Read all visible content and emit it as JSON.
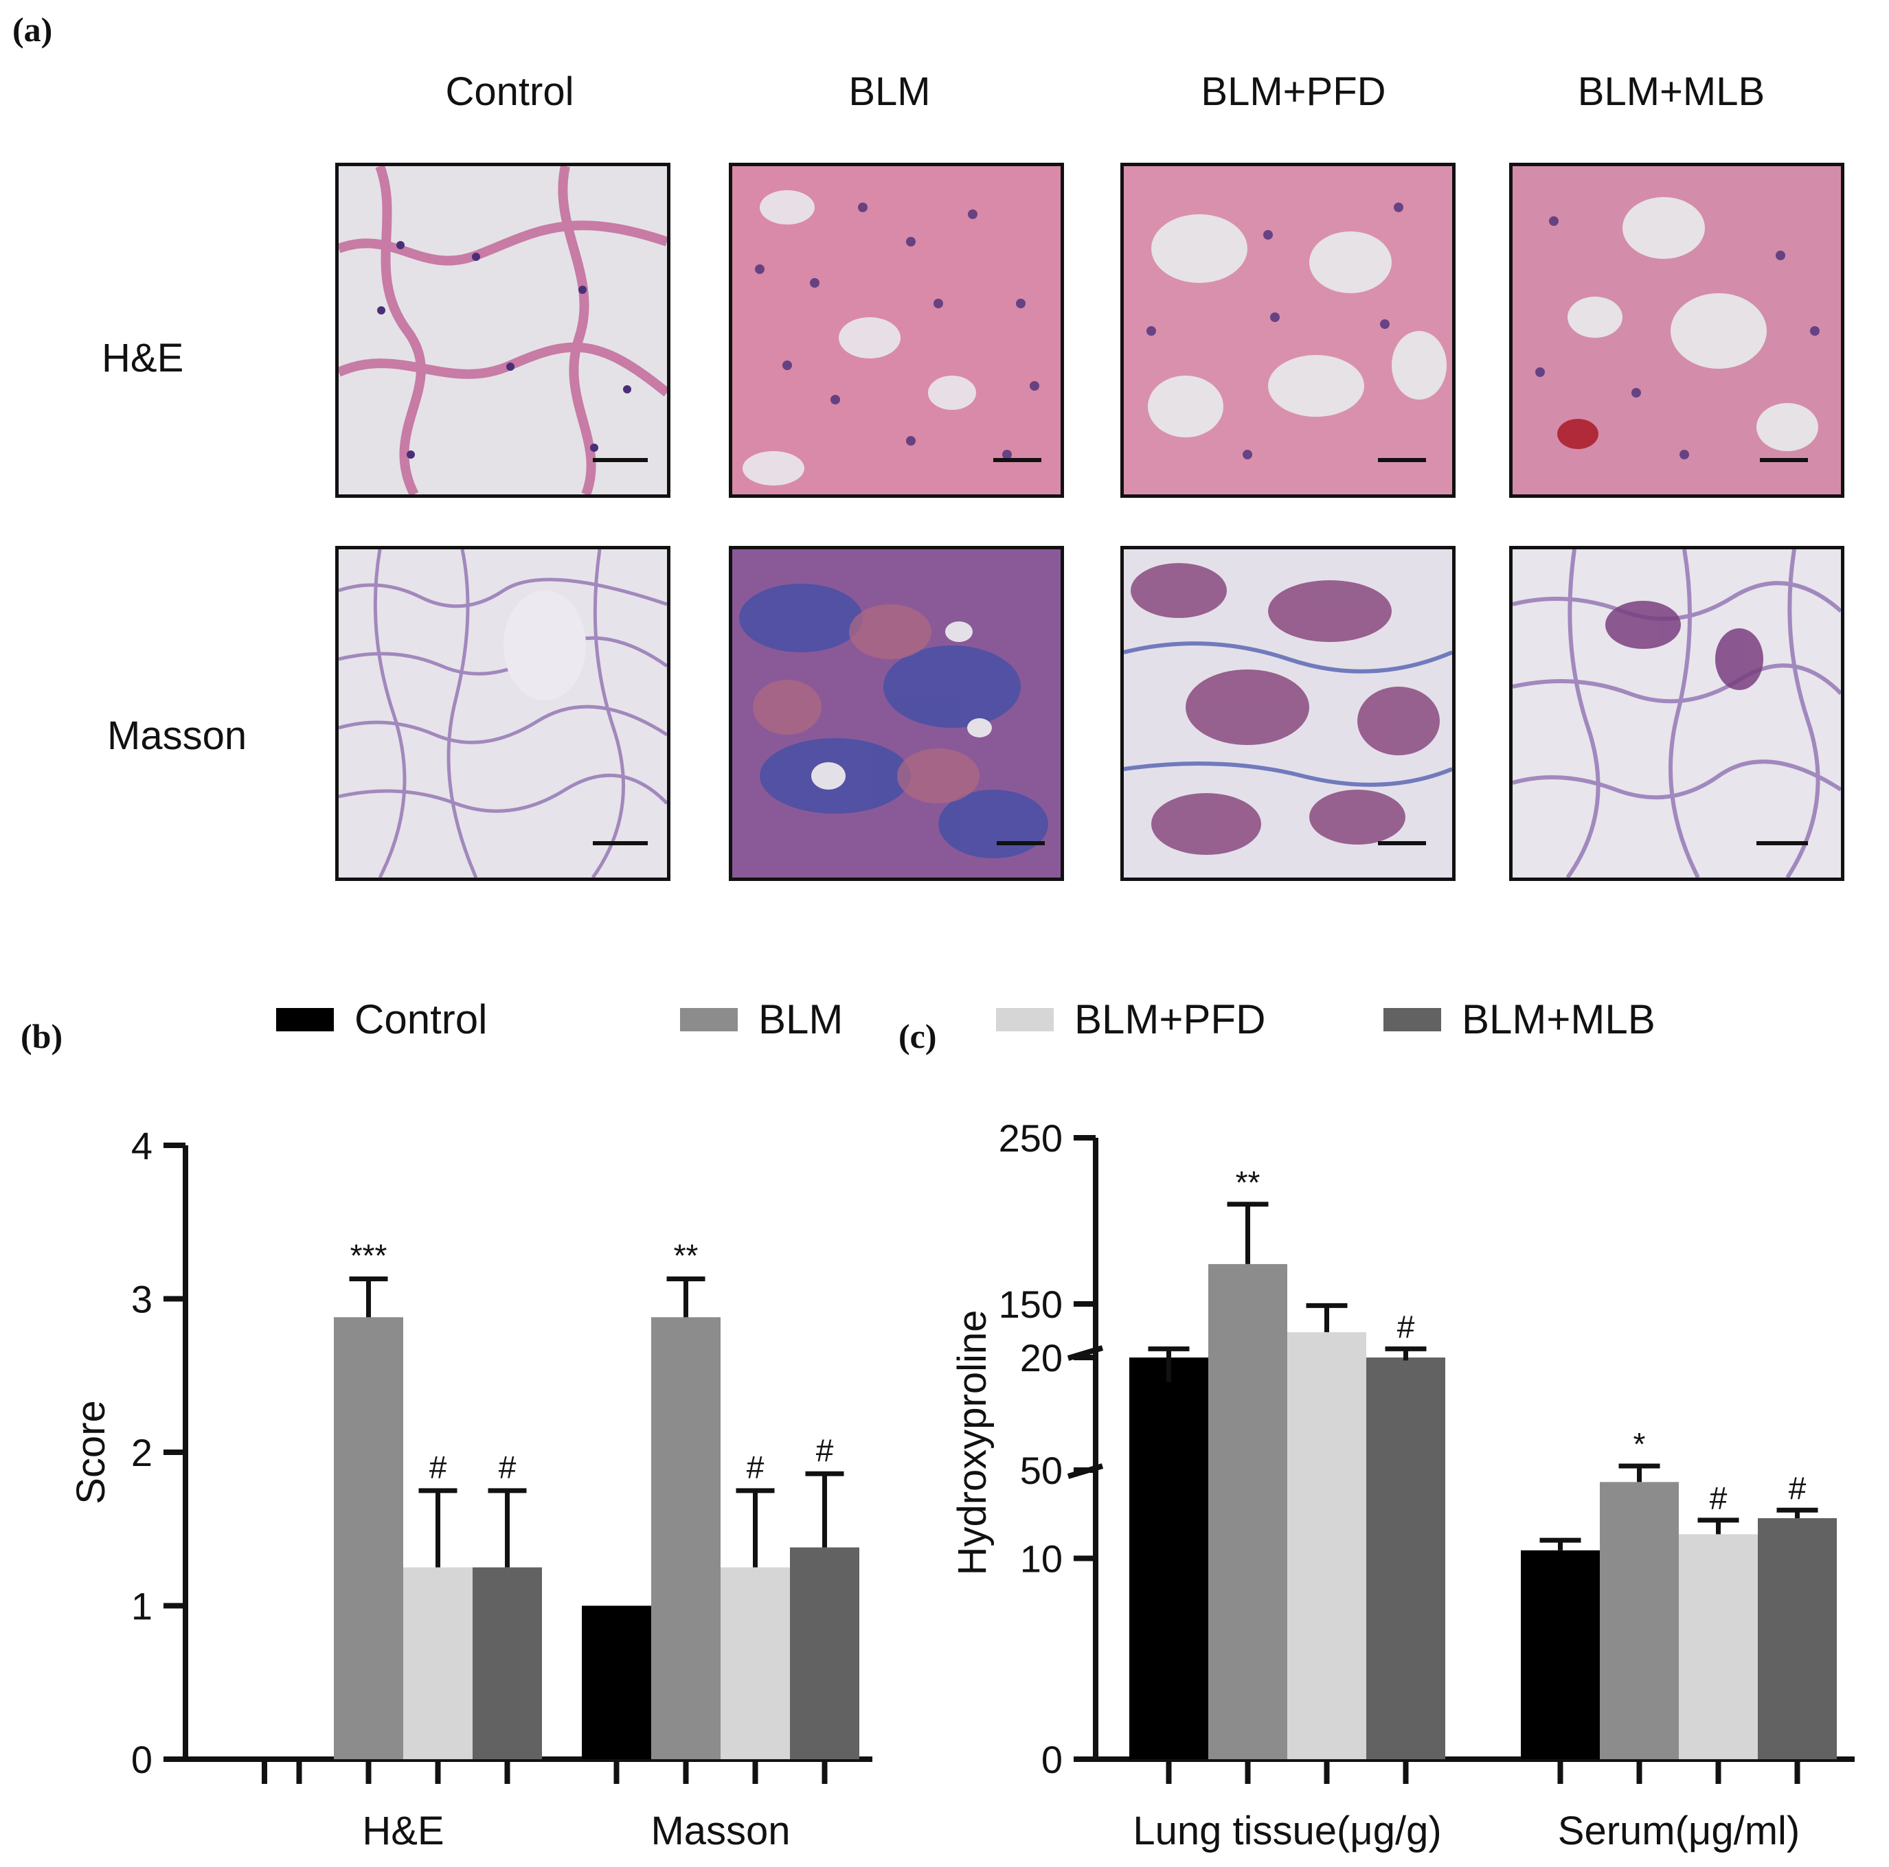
{
  "panels": {
    "a": "(a)",
    "b": "(b)",
    "c": "(c)"
  },
  "micrographs": {
    "columns": [
      "Control",
      "BLM",
      "BLM+PFD",
      "BLM+MLB"
    ],
    "rows": [
      "H&E",
      "Masson"
    ]
  },
  "legend": [
    {
      "name": "Control",
      "color": "#000000"
    },
    {
      "name": "BLM",
      "color": "#8c8c8c"
    },
    {
      "name": "BLM+PFD",
      "color": "#d6d6d6"
    },
    {
      "name": "BLM+MLB",
      "color": "#626262"
    }
  ],
  "chart_data": [
    {
      "type": "bar",
      "panel": "(b)",
      "categories": [
        "H&E",
        "Masson"
      ],
      "ylabel": "Score",
      "ylim": [
        0,
        4
      ],
      "yticks": [
        "0",
        "1",
        "2",
        "3",
        "4"
      ],
      "series": [
        {
          "name": "Control",
          "values": [
            0,
            1.0
          ],
          "errors": [
            0,
            0
          ],
          "annotations": [
            "",
            ""
          ]
        },
        {
          "name": "BLM",
          "values": [
            2.88,
            2.88
          ],
          "errors": [
            0.25,
            0.25
          ],
          "annotations": [
            "***",
            "**"
          ]
        },
        {
          "name": "BLM+PFD",
          "values": [
            1.25,
            1.25
          ],
          "errors": [
            0.5,
            0.5
          ],
          "annotations": [
            "#",
            "#"
          ]
        },
        {
          "name": "BLM+MLB",
          "values": [
            1.25,
            1.38
          ],
          "errors": [
            0.5,
            0.48
          ],
          "annotations": [
            "#",
            "#"
          ]
        }
      ]
    },
    {
      "type": "bar",
      "panel": "(c)",
      "categories": [
        "Lung tissue(μg/g)",
        "Serum(μg/ml)"
      ],
      "ylabel": "Hydroxyproline",
      "axis_break": {
        "lower_range": [
          0,
          20
        ],
        "upper_range": [
          50,
          250
        ]
      },
      "yticks": [
        "0",
        "10",
        "20",
        "50",
        "150",
        "250"
      ],
      "series": [
        {
          "name": "Control",
          "values": [
            103,
            10.4
          ],
          "errors": [
            20,
            0.5
          ],
          "annotations": [
            "",
            ""
          ]
        },
        {
          "name": "BLM",
          "values": [
            174,
            13.8
          ],
          "errors": [
            36,
            0.8
          ],
          "annotations": [
            "**",
            "*"
          ]
        },
        {
          "name": "BLM+PFD",
          "values": [
            133,
            11.2
          ],
          "errors": [
            16,
            0.7
          ],
          "annotations": [
            "",
            "#"
          ]
        },
        {
          "name": "BLM+MLB",
          "values": [
            116,
            12.0
          ],
          "errors": [
            7,
            0.4
          ],
          "annotations": [
            "#",
            "#"
          ]
        }
      ]
    }
  ]
}
